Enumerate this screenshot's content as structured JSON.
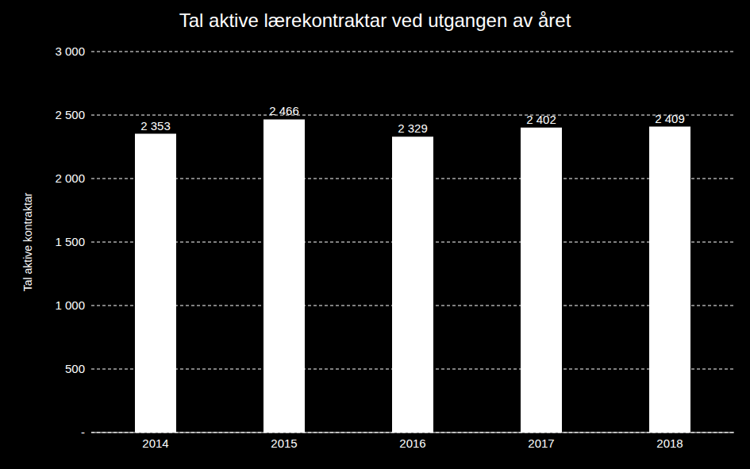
{
  "chart_data": {
    "type": "bar",
    "title": "Tal aktive lærekontraktar ved utgangen av året",
    "y_label": "Tal aktive kontraktar",
    "categories": [
      "2014",
      "2015",
      "2016",
      "2017",
      "2018"
    ],
    "values": [
      2353,
      2466,
      2329,
      2402,
      2409
    ],
    "value_labels": [
      "2 353",
      "2 466",
      "2 329",
      "2 402",
      "2 409"
    ],
    "color": "#ffffff",
    "ylim": [
      0,
      3000
    ],
    "yticks": [
      {
        "value": 0,
        "label": "-"
      },
      500,
      {
        "value": 1000,
        "label": "1 000"
      },
      {
        "value": 1500,
        "label": "1 500"
      },
      {
        "value": 2000,
        "label": "2 000"
      },
      {
        "value": 2500,
        "label": "2 500"
      },
      {
        "value": 3000,
        "label": "3 000"
      }
    ],
    "grid": true,
    "data_labels": true
  }
}
